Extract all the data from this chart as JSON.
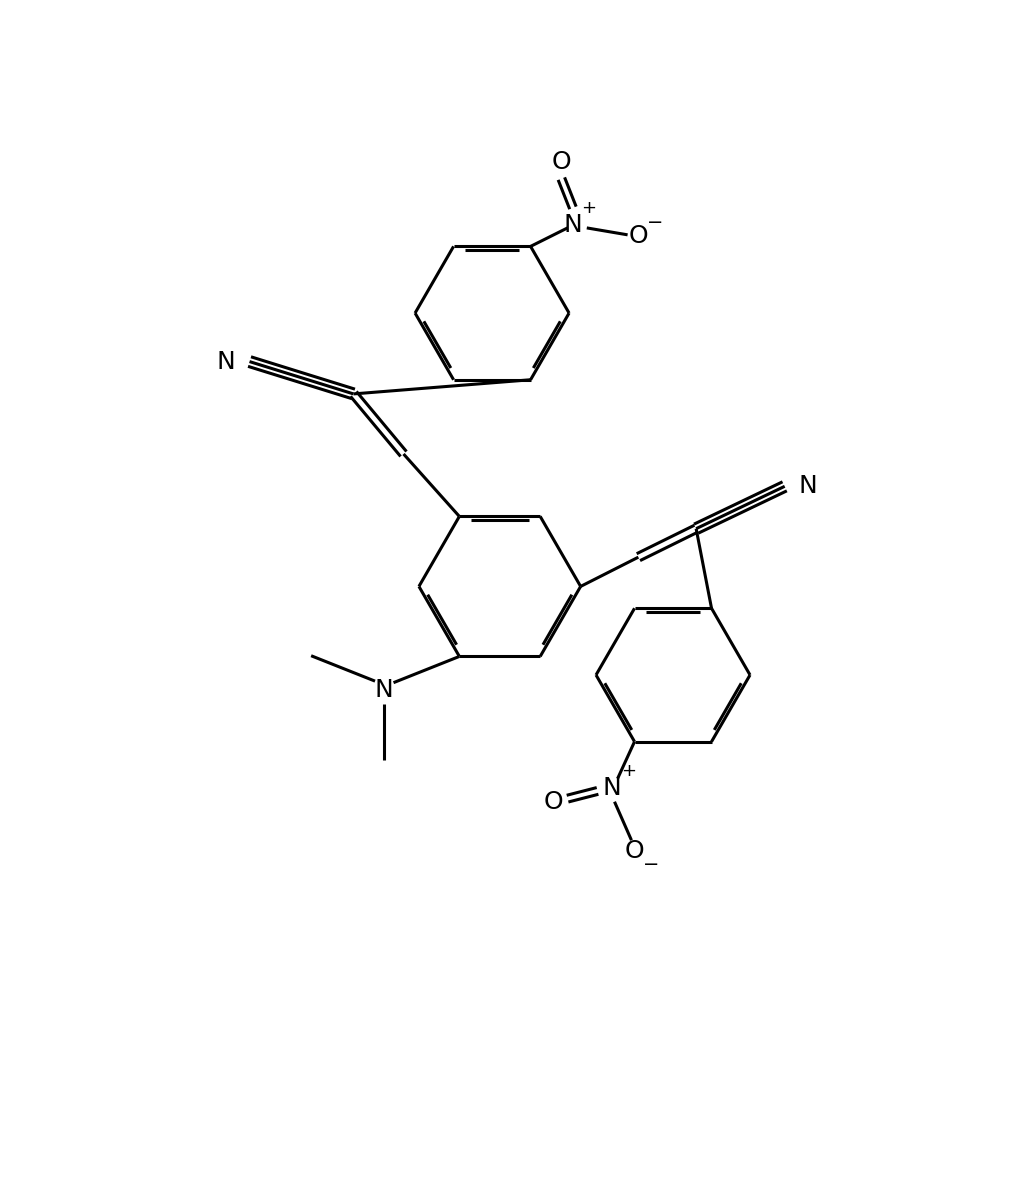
{
  "bg": "#ffffff",
  "lc": "#000000",
  "lw": 2.2,
  "fs": 18,
  "figsize": [
    10.21,
    11.78
  ],
  "dpi": 100,
  "cen": [
    4.8,
    6.0
  ],
  "cen_r": 1.05,
  "up_ring": [
    4.9,
    9.7
  ],
  "up_r": 1.0,
  "rp_ring": [
    7.3,
    5.1
  ],
  "rp_r": 1.0
}
